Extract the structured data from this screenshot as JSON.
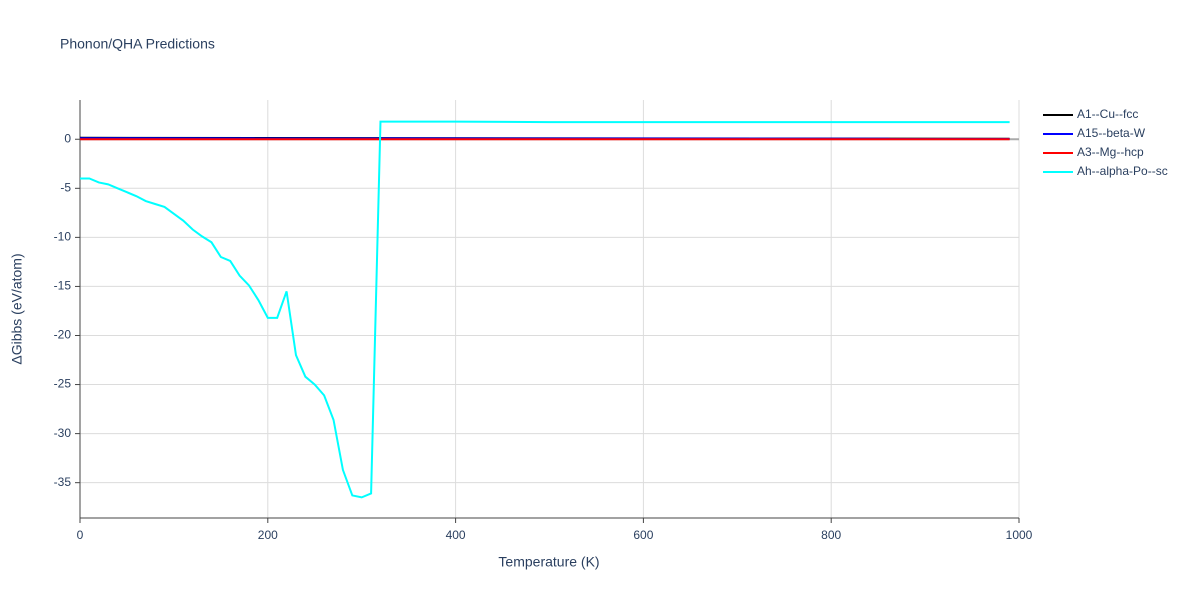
{
  "chart_data": {
    "type": "line",
    "title": "Phonon/QHA Predictions",
    "x_label": "Temperature (K)",
    "y_label": "ΔGibbs (eV/atom)",
    "xlim": [
      0,
      1000
    ],
    "xticks": [
      0,
      200,
      400,
      600,
      800,
      1000
    ],
    "ylim": [
      -38.6,
      4
    ],
    "yticks": [
      0,
      -5,
      -10,
      -15,
      -20,
      -25,
      -30,
      -35
    ],
    "grid": true,
    "legend": "right",
    "series": [
      {
        "name": "A1--Cu--fcc",
        "color": "#000000",
        "x": [
          0,
          990
        ],
        "values": [
          0.15,
          0.05
        ]
      },
      {
        "name": "A15--beta-W",
        "color": "#0000ff",
        "x": [
          0,
          990
        ],
        "values": [
          0.1,
          0.05
        ]
      },
      {
        "name": "A3--Mg--hcp",
        "color": "#ff0000",
        "x": [
          0,
          990
        ],
        "values": [
          0,
          0
        ]
      },
      {
        "name": "Ah--alpha-Po--sc",
        "color": "#00ffff",
        "x": [
          0,
          10,
          20,
          30,
          40,
          50,
          60,
          70,
          80,
          90,
          100,
          110,
          120,
          130,
          140,
          150,
          160,
          170,
          180,
          190,
          200,
          210,
          220,
          230,
          240,
          250,
          260,
          270,
          280,
          290,
          300,
          310,
          320,
          400,
          500,
          990
        ],
        "values": [
          -4.0,
          -4.0,
          -4.4,
          -4.6,
          -5.0,
          -5.4,
          -5.8,
          -6.3,
          -6.6,
          -6.9,
          -7.6,
          -8.3,
          -9.2,
          -9.9,
          -10.5,
          -12.0,
          -12.4,
          -13.9,
          -14.9,
          -16.4,
          -18.2,
          -18.2,
          -15.5,
          -22.0,
          -24.2,
          -25.0,
          -26.1,
          -28.6,
          -33.7,
          -36.3,
          -36.5,
          -36.1,
          1.8,
          1.8,
          1.75,
          1.75
        ]
      }
    ]
  }
}
